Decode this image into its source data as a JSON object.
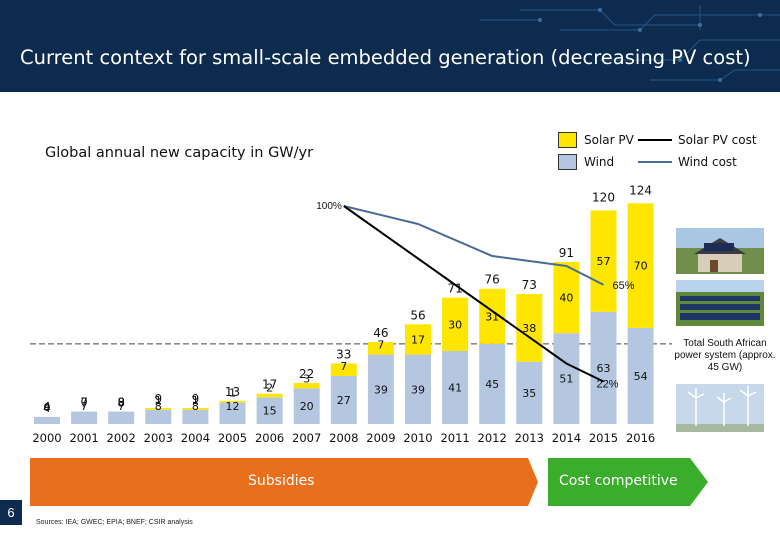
{
  "header": {
    "title": "Current context for small-scale embedded generation (decreasing PV cost)"
  },
  "subtitle": "Global annual new capacity in GW/yr",
  "legend": {
    "solar": "Solar PV",
    "wind": "Wind",
    "solar_cost": "Solar PV cost",
    "wind_cost": "Wind cost"
  },
  "colors": {
    "header_bg": "#0d2b4e",
    "solar": "#ffe600",
    "wind": "#b5c7e0",
    "solar_cost_line": "#000000",
    "wind_cost_line": "#4a6b96",
    "subsidies_arrow": "#e8701c",
    "competitive_arrow": "#3aae2a"
  },
  "chart_data": {
    "type": "bar",
    "stacked": true,
    "categories": [
      "2000",
      "2001",
      "2002",
      "2003",
      "2004",
      "2005",
      "2006",
      "2007",
      "2008",
      "2009",
      "2010",
      "2011",
      "2012",
      "2013",
      "2014",
      "2015",
      "2016"
    ],
    "series": [
      {
        "name": "Wind",
        "values": [
          4,
          7,
          7,
          8,
          8,
          12,
          15,
          20,
          27,
          39,
          39,
          41,
          45,
          35,
          51,
          63,
          54
        ]
      },
      {
        "name": "Solar PV",
        "values": [
          0,
          0,
          0,
          1,
          1,
          1,
          2,
          3,
          7,
          7,
          17,
          30,
          31,
          38,
          40,
          57,
          70
        ]
      }
    ],
    "totals": [
      4,
      7,
      8,
      9,
      9,
      13,
      17,
      22,
      33,
      46,
      56,
      71,
      76,
      73,
      91,
      120,
      124
    ],
    "total_labels": [
      "4",
      "7",
      "8",
      "9",
      "9",
      "13",
      "17",
      "22",
      "33",
      "46",
      "56",
      "71",
      "76",
      "73",
      "91",
      "120",
      "124"
    ],
    "wind_labels": [
      "4",
      "7",
      "7",
      "8",
      "8",
      "12",
      "15",
      "20",
      "27",
      "39",
      "39",
      "41",
      "45",
      "35",
      "51",
      "63",
      "54"
    ],
    "solar_labels": [
      "0",
      "0",
      "0",
      "1",
      "1",
      "1",
      "2",
      "3",
      "7",
      "7",
      "17",
      "30",
      "31",
      "38",
      "40",
      "57",
      "70"
    ],
    "cost_lines": [
      {
        "name": "Solar PV cost",
        "start_label": "100%",
        "end_label": "22%",
        "x": [
          2008,
          2014,
          2015
        ],
        "y": [
          100,
          30,
          22
        ]
      },
      {
        "name": "Wind cost",
        "end_label": "65%",
        "x": [
          2008,
          2015
        ],
        "y": [
          100,
          65
        ]
      }
    ],
    "reference_line": {
      "label": "Total South African power system (approx. 45 GW)",
      "value": 45
    }
  },
  "arrows": {
    "subsidies": "Subsidies",
    "competitive": "Cost competitive"
  },
  "sa_note": "Total South African power system (approx. 45 GW)",
  "page_number": "6",
  "sources": "Sources: IEA; GWEC; EPIA; BNEF; CSIR analysis",
  "icons": {
    "house": "house-with-solar-panels-icon",
    "solar_farm": "solar-farm-icon",
    "wind_farm": "wind-turbines-icon"
  }
}
